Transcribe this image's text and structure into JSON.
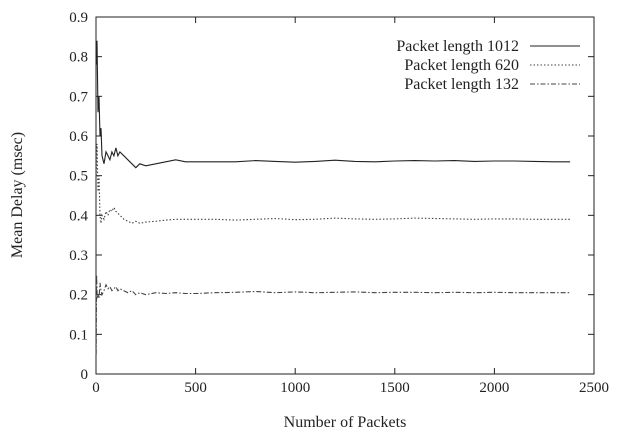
{
  "chart_data": {
    "type": "line",
    "title": "",
    "xlabel": "Number of Packets",
    "ylabel": "Mean Delay (msec)",
    "xlim": [
      0,
      2500
    ],
    "ylim": [
      0,
      0.9
    ],
    "xticks": [
      0,
      500,
      1000,
      1500,
      2000,
      2500
    ],
    "yticks": [
      0,
      0.1,
      0.2,
      0.3,
      0.4,
      0.5,
      0.6,
      0.7,
      0.8,
      0.9
    ],
    "grid": false,
    "legend_position": "top-right",
    "series": [
      {
        "name": "Packet length 1012",
        "line_style": "solid",
        "color": "#222222",
        "x": [
          1,
          5,
          10,
          15,
          20,
          25,
          30,
          40,
          50,
          60,
          70,
          80,
          90,
          100,
          110,
          120,
          140,
          160,
          180,
          200,
          220,
          250,
          300,
          350,
          400,
          450,
          500,
          600,
          700,
          800,
          900,
          1000,
          1100,
          1200,
          1300,
          1400,
          1500,
          1600,
          1700,
          1800,
          1900,
          2000,
          2100,
          2200,
          2300,
          2380
        ],
        "y": [
          0.78,
          0.84,
          0.66,
          0.7,
          0.6,
          0.62,
          0.55,
          0.53,
          0.56,
          0.55,
          0.54,
          0.56,
          0.55,
          0.57,
          0.55,
          0.56,
          0.55,
          0.54,
          0.53,
          0.52,
          0.53,
          0.525,
          0.53,
          0.535,
          0.54,
          0.535,
          0.535,
          0.535,
          0.535,
          0.538,
          0.536,
          0.534,
          0.536,
          0.539,
          0.536,
          0.535,
          0.537,
          0.538,
          0.537,
          0.538,
          0.536,
          0.537,
          0.537,
          0.536,
          0.535,
          0.535
        ]
      },
      {
        "name": "Packet length 620",
        "line_style": "dotted",
        "color": "#444444",
        "x": [
          1,
          5,
          10,
          15,
          20,
          25,
          30,
          40,
          50,
          60,
          70,
          80,
          90,
          100,
          110,
          120,
          140,
          160,
          180,
          200,
          220,
          250,
          300,
          350,
          400,
          450,
          500,
          600,
          700,
          800,
          900,
          1000,
          1100,
          1200,
          1300,
          1400,
          1500,
          1600,
          1700,
          1800,
          1900,
          2000,
          2100,
          2200,
          2300,
          2380
        ],
        "y": [
          0.5,
          0.58,
          0.46,
          0.5,
          0.4,
          0.38,
          0.4,
          0.39,
          0.41,
          0.4,
          0.415,
          0.41,
          0.42,
          0.41,
          0.405,
          0.4,
          0.39,
          0.385,
          0.38,
          0.385,
          0.38,
          0.383,
          0.385,
          0.388,
          0.39,
          0.39,
          0.39,
          0.39,
          0.388,
          0.39,
          0.392,
          0.389,
          0.39,
          0.393,
          0.391,
          0.39,
          0.391,
          0.393,
          0.392,
          0.391,
          0.39,
          0.391,
          0.391,
          0.39,
          0.39,
          0.39
        ]
      },
      {
        "name": "Packet length 132",
        "line_style": "dash-dot",
        "color": "#444444",
        "x": [
          1,
          3,
          6,
          10,
          15,
          20,
          25,
          30,
          40,
          50,
          60,
          70,
          80,
          90,
          100,
          110,
          120,
          140,
          160,
          180,
          200,
          220,
          250,
          300,
          350,
          400,
          450,
          500,
          600,
          700,
          800,
          900,
          1000,
          1100,
          1200,
          1300,
          1400,
          1500,
          1600,
          1700,
          1800,
          1900,
          2000,
          2100,
          2200,
          2300,
          2380
        ],
        "y": [
          0.05,
          0.25,
          0.19,
          0.2,
          0.19,
          0.23,
          0.21,
          0.2,
          0.21,
          0.225,
          0.215,
          0.22,
          0.21,
          0.215,
          0.22,
          0.21,
          0.215,
          0.21,
          0.205,
          0.21,
          0.2,
          0.205,
          0.2,
          0.205,
          0.203,
          0.205,
          0.203,
          0.203,
          0.205,
          0.206,
          0.208,
          0.205,
          0.207,
          0.205,
          0.206,
          0.207,
          0.205,
          0.206,
          0.206,
          0.205,
          0.206,
          0.205,
          0.206,
          0.205,
          0.205,
          0.205,
          0.205
        ]
      }
    ]
  }
}
